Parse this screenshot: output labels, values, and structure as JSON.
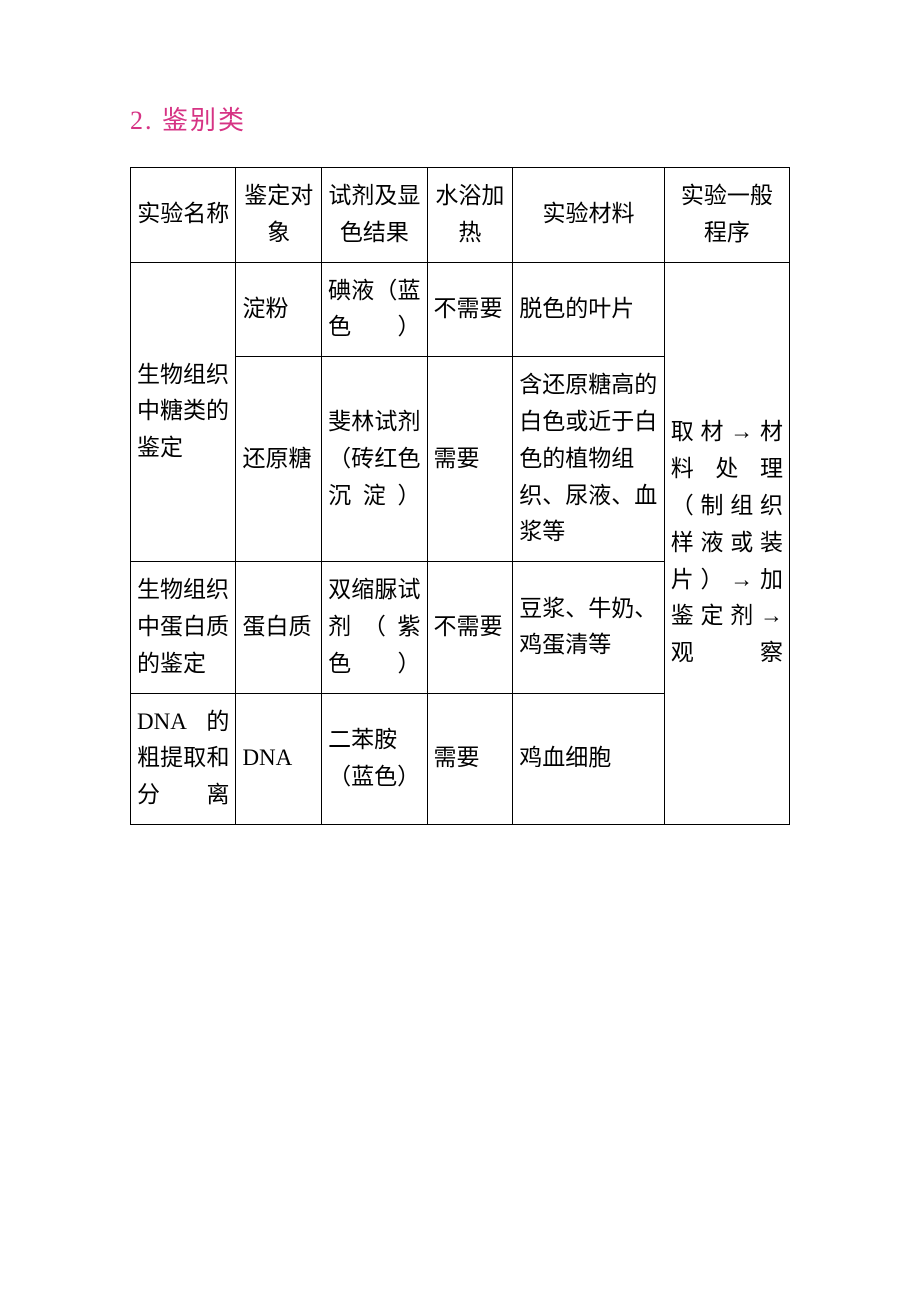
{
  "heading": "2. 鉴别类",
  "table": {
    "headers": {
      "col1": "实验名称",
      "col2": "鉴定对象",
      "col3": "试剂及显色结果",
      "col4": "水浴加热",
      "col5": "实验材料",
      "col6": "实验一般程序"
    },
    "rows": {
      "r1": {
        "experiment": "生物组织中糖类的鉴定",
        "target": "淀粉",
        "reagent": "碘液（蓝色）",
        "heating": "不需要",
        "material": "脱色的叶片"
      },
      "r2": {
        "target": "还原糖",
        "reagent": "斐林试剂（砖红色沉淀）",
        "heating": "需要",
        "material": "含还原糖高的白色或近于白色的植物组织、尿液、血浆等"
      },
      "r3": {
        "experiment": "生物组织中蛋白质的鉴定",
        "target": "蛋白质",
        "reagent": "双缩脲试剂（紫色）",
        "heating": "不需要",
        "material": "豆浆、牛奶、鸡蛋清等"
      },
      "r4": {
        "experiment": "DNA 的粗提取和分离",
        "target": "DNA",
        "reagent": "二苯胺（蓝色）",
        "heating": "需要",
        "material": "鸡血细胞"
      },
      "procedure": "取材→材料处理（制组织样液或装片）→加鉴定剂→观察"
    }
  },
  "styling": {
    "heading_color": "#d63384",
    "border_color": "#000000",
    "text_color": "#000000",
    "background_color": "#ffffff",
    "font_family": "SimSun",
    "heading_fontsize": 26,
    "cell_fontsize": 23,
    "border_width": 1.5,
    "column_widths_pct": [
      16,
      13,
      16,
      13,
      23,
      19
    ]
  }
}
